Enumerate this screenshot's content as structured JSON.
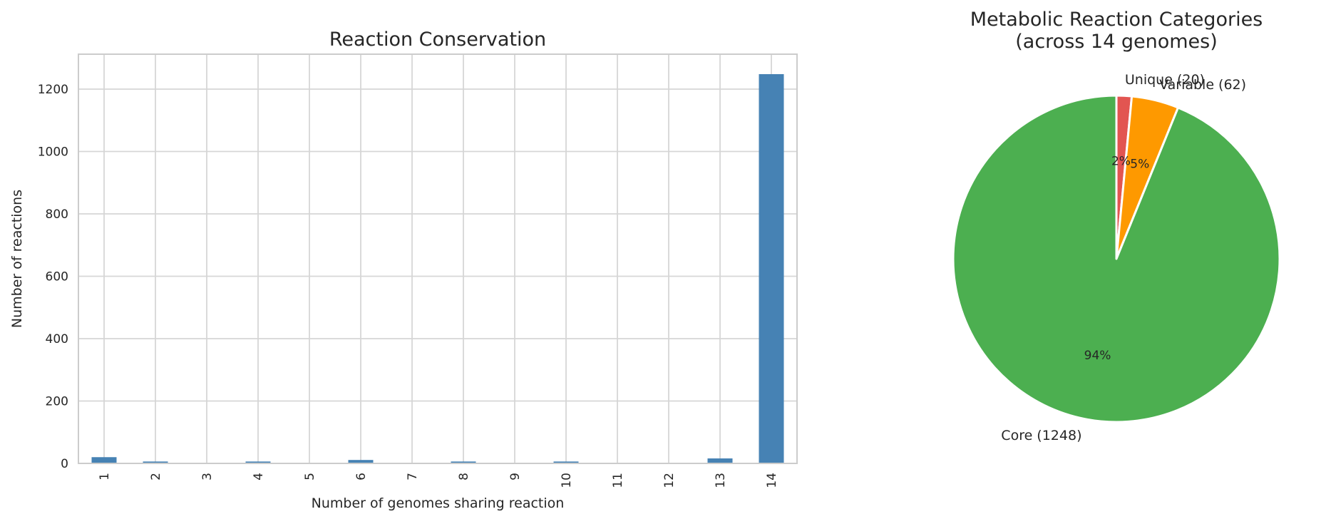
{
  "figure": {
    "background": "#ffffff",
    "text_color": "#262626",
    "grid_color": "#d6d6d6",
    "spine_color": "#cccccc",
    "wedge_edge_color": "#ffffff"
  },
  "chart_data": [
    {
      "type": "bar",
      "title": "Reaction Conservation",
      "xlabel": "Number of genomes sharing reaction",
      "ylabel": "Number of reactions",
      "categories": [
        "1",
        "2",
        "3",
        "4",
        "5",
        "6",
        "7",
        "8",
        "9",
        "10",
        "11",
        "12",
        "13",
        "14"
      ],
      "values": [
        20,
        6,
        2,
        6,
        1,
        11,
        2,
        6,
        2,
        6,
        2,
        2,
        16,
        1248
      ],
      "bar_color": "#4682b4",
      "ylim": [
        0,
        1312
      ],
      "yticks": [
        0,
        200,
        400,
        600,
        800,
        1000,
        1200
      ],
      "grid": true,
      "xtick_rotation": 90
    },
    {
      "type": "pie",
      "title_lines": [
        "Metabolic Reaction Categories",
        "(across 14 genomes)"
      ],
      "start_angle": 90,
      "clockwise": true,
      "legend_position": "none",
      "slices": [
        {
          "label": "Unique (20)",
          "value": 20,
          "pct_label": "2%",
          "color": "#e25551"
        },
        {
          "label": "Variable (62)",
          "value": 62,
          "pct_label": "5%",
          "color": "#fe9900"
        },
        {
          "label": "Core (1248)",
          "value": 1248,
          "pct_label": "94%",
          "color": "#4caf50"
        }
      ]
    }
  ]
}
